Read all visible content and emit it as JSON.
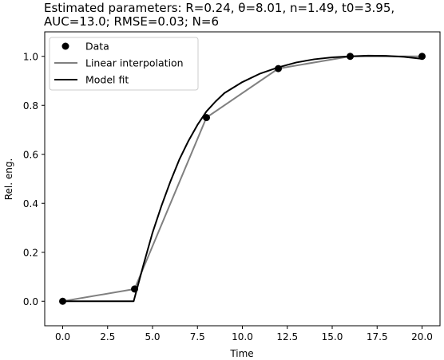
{
  "chart_data": {
    "type": "line",
    "title_line1": "Estimated parameters: R=0.24, θ=8.01, n=1.49, t0=3.95,",
    "title_line2": "AUC=13.0; RMSE=0.03; N=6",
    "xlabel": "Time",
    "ylabel": "Rel. eng.",
    "xlim": [
      -1.0,
      21.0
    ],
    "ylim": [
      -0.1,
      1.1
    ],
    "xticks": [
      0.0,
      2.5,
      5.0,
      7.5,
      10.0,
      12.5,
      15.0,
      17.5,
      20.0
    ],
    "xtick_labels": [
      "0.0",
      "2.5",
      "5.0",
      "7.5",
      "10.0",
      "12.5",
      "15.0",
      "17.5",
      "20.0"
    ],
    "yticks": [
      0.0,
      0.2,
      0.4,
      0.6,
      0.8,
      1.0
    ],
    "ytick_labels": [
      "0.0",
      "0.2",
      "0.4",
      "0.6",
      "0.8",
      "1.0"
    ],
    "grid": false,
    "legend_position": "upper-left",
    "series": [
      {
        "name": "Data",
        "kind": "scatter",
        "color": "#000000",
        "x": [
          0,
          4,
          8,
          12,
          16,
          20
        ],
        "y": [
          0.0,
          0.05,
          0.75,
          0.95,
          1.0,
          1.0
        ]
      },
      {
        "name": "Linear interpolation",
        "kind": "line",
        "color": "#808080",
        "x": [
          0,
          4,
          8,
          12,
          16,
          20
        ],
        "y": [
          0.0,
          0.05,
          0.75,
          0.95,
          1.0,
          1.0
        ]
      },
      {
        "name": "Model fit",
        "kind": "line",
        "color": "#000000",
        "x": [
          0,
          3.95,
          4.5,
          5,
          5.5,
          6,
          6.5,
          7,
          7.5,
          8,
          8.5,
          9,
          10,
          11,
          12,
          13,
          14,
          15,
          16,
          17,
          18,
          19,
          20
        ],
        "y": [
          0.0,
          0.0,
          0.15,
          0.28,
          0.39,
          0.49,
          0.58,
          0.655,
          0.72,
          0.775,
          0.815,
          0.85,
          0.895,
          0.93,
          0.955,
          0.975,
          0.988,
          0.996,
          1.0,
          1.003,
          1.002,
          0.998,
          0.99
        ]
      }
    ]
  }
}
